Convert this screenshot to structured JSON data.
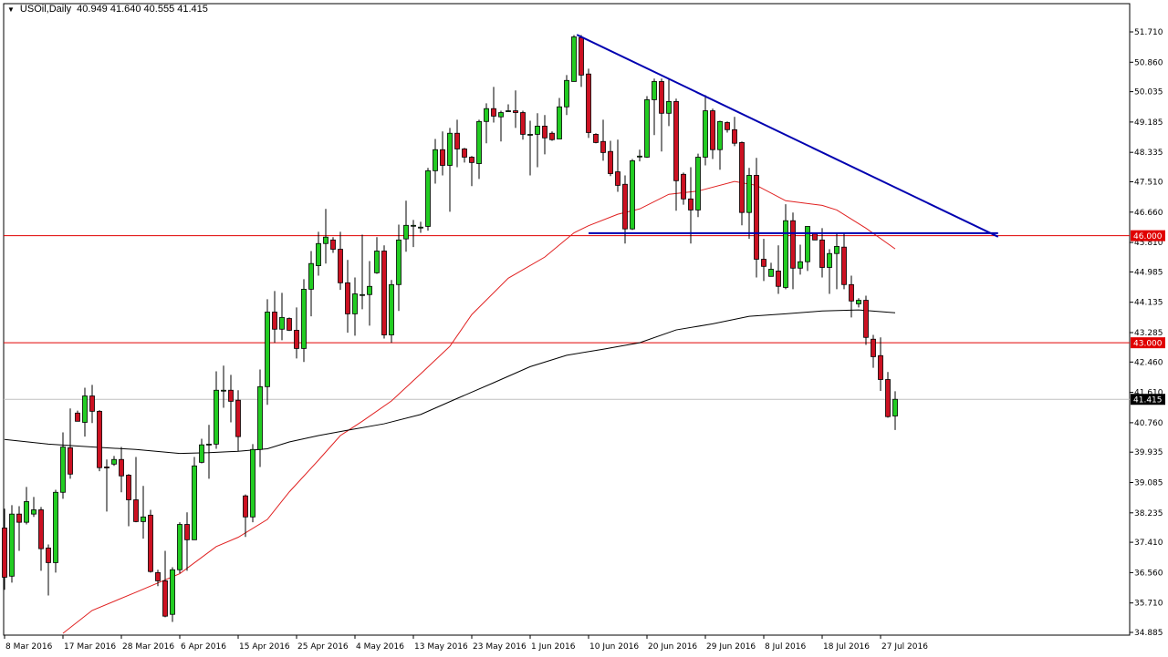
{
  "header": {
    "symbol": "USOil,Daily",
    "ohlc": "40.949 41.640 40.555 41.415",
    "menu_icon": "triangle-down-icon"
  },
  "chart_data": {
    "type": "candlestick",
    "symbol": "USOil",
    "timeframe": "Daily",
    "ylim": [
      34.885,
      51.71
    ],
    "y_ticks": [
      "51.710",
      "50.860",
      "50.035",
      "49.185",
      "48.335",
      "47.510",
      "46.660",
      "45.810",
      "44.985",
      "44.135",
      "43.285",
      "42.460",
      "41.610",
      "40.760",
      "39.935",
      "39.085",
      "38.235",
      "37.410",
      "36.560",
      "35.710",
      "34.885"
    ],
    "x_tick_labels": [
      "8 Mar 2016",
      "17 Mar 2016",
      "28 Mar 2016",
      "6 Apr 2016",
      "15 Apr 2016",
      "25 Apr 2016",
      "4 May 2016",
      "13 May 2016",
      "23 May 2016",
      "1 Jun 2016",
      "10 Jun 2016",
      "20 Jun 2016",
      "29 Jun 2016",
      "8 Jul 2016",
      "18 Jul 2016",
      "27 Jul 2016"
    ],
    "candle_fields": [
      "open",
      "high",
      "low",
      "close"
    ],
    "candles": [
      [
        37.81,
        38.35,
        36.08,
        36.43
      ],
      [
        36.46,
        38.45,
        36.28,
        38.2
      ],
      [
        38.2,
        38.42,
        37.17,
        37.97
      ],
      [
        37.97,
        38.96,
        37.91,
        38.55
      ],
      [
        38.2,
        38.68,
        38.12,
        38.32
      ],
      [
        38.32,
        38.4,
        36.61,
        37.23
      ],
      [
        37.25,
        37.35,
        35.92,
        36.84
      ],
      [
        36.84,
        38.88,
        36.56,
        38.81
      ],
      [
        38.81,
        40.49,
        38.63,
        40.08
      ],
      [
        40.06,
        41.16,
        39.19,
        39.32
      ],
      [
        41.03,
        41.1,
        40.8,
        40.8
      ],
      [
        40.77,
        41.74,
        40.37,
        41.51
      ],
      [
        41.51,
        41.82,
        40.75,
        41.08
      ],
      [
        41.08,
        41.11,
        39.4,
        39.5
      ],
      [
        39.52,
        39.73,
        38.27,
        39.5
      ],
      [
        39.6,
        39.83,
        39.55,
        39.73
      ],
      [
        39.73,
        40.08,
        38.81,
        39.27
      ],
      [
        39.29,
        39.32,
        37.86,
        38.6
      ],
      [
        38.6,
        39.8,
        37.97,
        37.99
      ],
      [
        37.99,
        38.99,
        37.51,
        38.12
      ],
      [
        38.17,
        38.32,
        36.56,
        36.59
      ],
      [
        36.56,
        36.64,
        36.18,
        36.33
      ],
      [
        36.33,
        37.17,
        35.31,
        35.34
      ],
      [
        35.39,
        36.71,
        35.18,
        36.64
      ],
      [
        36.64,
        37.97,
        36.54,
        37.91
      ],
      [
        37.91,
        38.25,
        36.61,
        37.48
      ],
      [
        37.48,
        39.8,
        37.48,
        39.55
      ],
      [
        39.65,
        40.31,
        39.62,
        40.14
      ],
      [
        40.16,
        40.7,
        39.19,
        40.16
      ],
      [
        40.16,
        42.2,
        40.03,
        41.67
      ],
      [
        41.67,
        42.36,
        41.18,
        41.67
      ],
      [
        41.67,
        42.1,
        40.77,
        41.36
      ],
      [
        41.39,
        41.67,
        39.96,
        40.37
      ],
      [
        38.71,
        38.75,
        37.56,
        38.12
      ],
      [
        38.12,
        40.16,
        37.97,
        40.01
      ],
      [
        40.01,
        42.25,
        39.52,
        41.77
      ],
      [
        41.77,
        44.22,
        41.26,
        43.86
      ],
      [
        43.86,
        44.45,
        43.0,
        43.38
      ],
      [
        43.38,
        44.4,
        43.07,
        43.71
      ],
      [
        43.68,
        43.71,
        43.33,
        43.35
      ],
      [
        43.35,
        43.99,
        42.56,
        42.84
      ],
      [
        42.84,
        44.78,
        42.46,
        44.5
      ],
      [
        44.5,
        45.57,
        43.74,
        45.22
      ],
      [
        45.16,
        46.11,
        44.88,
        45.78
      ],
      [
        45.78,
        46.75,
        45.22,
        45.96
      ],
      [
        45.88,
        45.96,
        45.52,
        45.62
      ],
      [
        45.62,
        46.11,
        44.48,
        44.68
      ],
      [
        44.68,
        45.32,
        43.28,
        43.81
      ],
      [
        43.81,
        44.83,
        43.2,
        44.37
      ],
      [
        44.35,
        46.03,
        43.94,
        44.35
      ],
      [
        44.35,
        45.29,
        43.48,
        44.58
      ],
      [
        44.96,
        45.96,
        44.93,
        45.57
      ],
      [
        45.57,
        45.73,
        43.12,
        43.22
      ],
      [
        43.22,
        44.76,
        43.0,
        44.63
      ],
      [
        44.63,
        46.31,
        43.89,
        45.88
      ],
      [
        45.91,
        46.98,
        45.55,
        46.29
      ],
      [
        46.29,
        46.44,
        45.68,
        46.29
      ],
      [
        46.24,
        46.39,
        46.08,
        46.24
      ],
      [
        46.26,
        47.9,
        46.14,
        47.82
      ],
      [
        47.82,
        48.71,
        47.46,
        48.41
      ],
      [
        48.41,
        48.92,
        47.69,
        47.97
      ],
      [
        47.97,
        49.02,
        46.67,
        48.87
      ],
      [
        48.87,
        49.25,
        47.92,
        48.43
      ],
      [
        48.43,
        48.46,
        48.05,
        48.2
      ],
      [
        48.2,
        48.23,
        47.39,
        48.05
      ],
      [
        48.02,
        49.25,
        47.59,
        49.2
      ],
      [
        49.2,
        49.71,
        48.59,
        49.56
      ],
      [
        49.56,
        50.17,
        49.17,
        49.35
      ],
      [
        49.33,
        49.5,
        48.64,
        49.45
      ],
      [
        49.5,
        49.68,
        49.48,
        49.5
      ],
      [
        49.5,
        50.07,
        49.02,
        49.45
      ],
      [
        49.45,
        49.5,
        48.69,
        48.84
      ],
      [
        48.84,
        49.22,
        47.69,
        48.84
      ],
      [
        48.84,
        49.43,
        47.92,
        49.07
      ],
      [
        49.07,
        49.38,
        48.28,
        48.74
      ],
      [
        48.87,
        48.92,
        48.66,
        48.69
      ],
      [
        48.71,
        49.86,
        48.71,
        49.61
      ],
      [
        49.61,
        50.5,
        49.38,
        50.35
      ],
      [
        50.32,
        51.62,
        50.32,
        51.57
      ],
      [
        51.55,
        51.62,
        50.17,
        50.5
      ],
      [
        50.53,
        50.68,
        48.74,
        48.89
      ],
      [
        48.84,
        48.87,
        48.59,
        48.61
      ],
      [
        48.64,
        49.25,
        48.1,
        48.33
      ],
      [
        48.36,
        48.66,
        47.67,
        47.74
      ],
      [
        47.79,
        48.69,
        47.23,
        47.41
      ],
      [
        47.44,
        47.69,
        45.78,
        46.19
      ],
      [
        46.19,
        48.15,
        46.16,
        48.1
      ],
      [
        48.23,
        48.41,
        48.08,
        48.23
      ],
      [
        48.2,
        49.91,
        48.18,
        49.81
      ],
      [
        49.81,
        50.4,
        48.82,
        50.32
      ],
      [
        50.32,
        50.4,
        48.36,
        49.43
      ],
      [
        49.43,
        50.37,
        49.07,
        49.76
      ],
      [
        49.76,
        49.84,
        46.7,
        47.54
      ],
      [
        47.72,
        47.77,
        46.87,
        47.03
      ],
      [
        47.03,
        47.92,
        45.78,
        46.72
      ],
      [
        46.72,
        48.3,
        46.52,
        48.2
      ],
      [
        48.2,
        49.94,
        47.97,
        49.5
      ],
      [
        49.5,
        49.56,
        48.15,
        48.41
      ],
      [
        48.41,
        49.22,
        47.85,
        49.2
      ],
      [
        49.17,
        49.2,
        48.89,
        48.97
      ],
      [
        48.97,
        49.33,
        48.51,
        48.59
      ],
      [
        48.61,
        48.64,
        46.29,
        46.65
      ],
      [
        46.65,
        47.9,
        45.91,
        47.69
      ],
      [
        47.69,
        48.18,
        44.83,
        45.34
      ],
      [
        45.34,
        45.91,
        44.73,
        45.14
      ],
      [
        44.86,
        45.24,
        44.86,
        45.06
      ],
      [
        45.01,
        45.73,
        44.37,
        44.58
      ],
      [
        44.55,
        46.88,
        44.5,
        46.42
      ],
      [
        46.42,
        46.65,
        44.5,
        45.09
      ],
      [
        45.09,
        45.75,
        44.91,
        45.27
      ],
      [
        45.27,
        46.26,
        45.01,
        46.26
      ],
      [
        46.06,
        46.08,
        45.88,
        45.88
      ],
      [
        45.88,
        46.21,
        44.83,
        45.11
      ],
      [
        45.11,
        45.62,
        44.37,
        45.5
      ],
      [
        45.5,
        46.06,
        44.5,
        45.7
      ],
      [
        45.68,
        46.06,
        44.5,
        44.63
      ],
      [
        44.63,
        44.88,
        43.71,
        44.17
      ],
      [
        44.09,
        44.25,
        43.99,
        44.19
      ],
      [
        44.19,
        44.32,
        42.94,
        43.15
      ],
      [
        43.1,
        43.22,
        42.3,
        42.61
      ],
      [
        42.64,
        43.15,
        41.65,
        41.97
      ],
      [
        41.97,
        42.18,
        40.9,
        40.93
      ],
      [
        40.949,
        41.64,
        40.555,
        41.415
      ]
    ],
    "moving_averages": [
      {
        "color": "#e02020",
        "points": [
          [
            8,
            34.86
          ],
          [
            12,
            35.5
          ],
          [
            18,
            36.01
          ],
          [
            24,
            36.53
          ],
          [
            29,
            37.29
          ],
          [
            32,
            37.55
          ],
          [
            36,
            38.05
          ],
          [
            39,
            38.82
          ],
          [
            43,
            39.71
          ],
          [
            46,
            40.4
          ],
          [
            49,
            40.8
          ],
          [
            53,
            41.37
          ],
          [
            57,
            42.13
          ],
          [
            61,
            42.9
          ],
          [
            64,
            43.79
          ],
          [
            69,
            44.81
          ],
          [
            74,
            45.4
          ],
          [
            78,
            46.08
          ],
          [
            80,
            46.28
          ],
          [
            84,
            46.6
          ],
          [
            87,
            46.75
          ],
          [
            91,
            47.16
          ],
          [
            95,
            47.25
          ],
          [
            100,
            47.52
          ],
          [
            103,
            47.41
          ],
          [
            107,
            46.98
          ],
          [
            112,
            46.85
          ],
          [
            114,
            46.72
          ],
          [
            118,
            46.21
          ],
          [
            122,
            45.63
          ]
        ]
      },
      {
        "color": "#000000",
        "points": [
          [
            0,
            40.29
          ],
          [
            6,
            40.16
          ],
          [
            12,
            40.08
          ],
          [
            18,
            40.01
          ],
          [
            24,
            39.9
          ],
          [
            28,
            39.92
          ],
          [
            32,
            39.96
          ],
          [
            36,
            40.03
          ],
          [
            39,
            40.22
          ],
          [
            43,
            40.4
          ],
          [
            47,
            40.55
          ],
          [
            52,
            40.73
          ],
          [
            57,
            40.99
          ],
          [
            62,
            41.44
          ],
          [
            67,
            41.88
          ],
          [
            72,
            42.33
          ],
          [
            77,
            42.65
          ],
          [
            82,
            42.82
          ],
          [
            87,
            43.0
          ],
          [
            92,
            43.36
          ],
          [
            97,
            43.53
          ],
          [
            102,
            43.74
          ],
          [
            107,
            43.81
          ],
          [
            112,
            43.89
          ],
          [
            117,
            43.92
          ],
          [
            122,
            43.84
          ]
        ]
      }
    ],
    "horizontal_lines": [
      {
        "price": 46.0,
        "label": "46.000",
        "color": "#e00000"
      },
      {
        "price": 43.0,
        "label": "43.000",
        "color": "#e00000"
      }
    ],
    "current_price": {
      "price": 41.415,
      "label": "41.415",
      "color": "#000000"
    },
    "trendlines": [
      {
        "name": "descending-resistance",
        "color": "#0000b0",
        "from": [
          78.4,
          51.63
        ],
        "to": [
          136.1,
          45.97
        ]
      },
      {
        "name": "horizontal-support",
        "color": "#0000b0",
        "from": [
          80,
          46.07
        ],
        "to": [
          136.1,
          46.07
        ]
      }
    ],
    "colors": {
      "bull": "#22cc22",
      "bear": "#cc1122",
      "wick": "#000000"
    },
    "grid": false
  }
}
